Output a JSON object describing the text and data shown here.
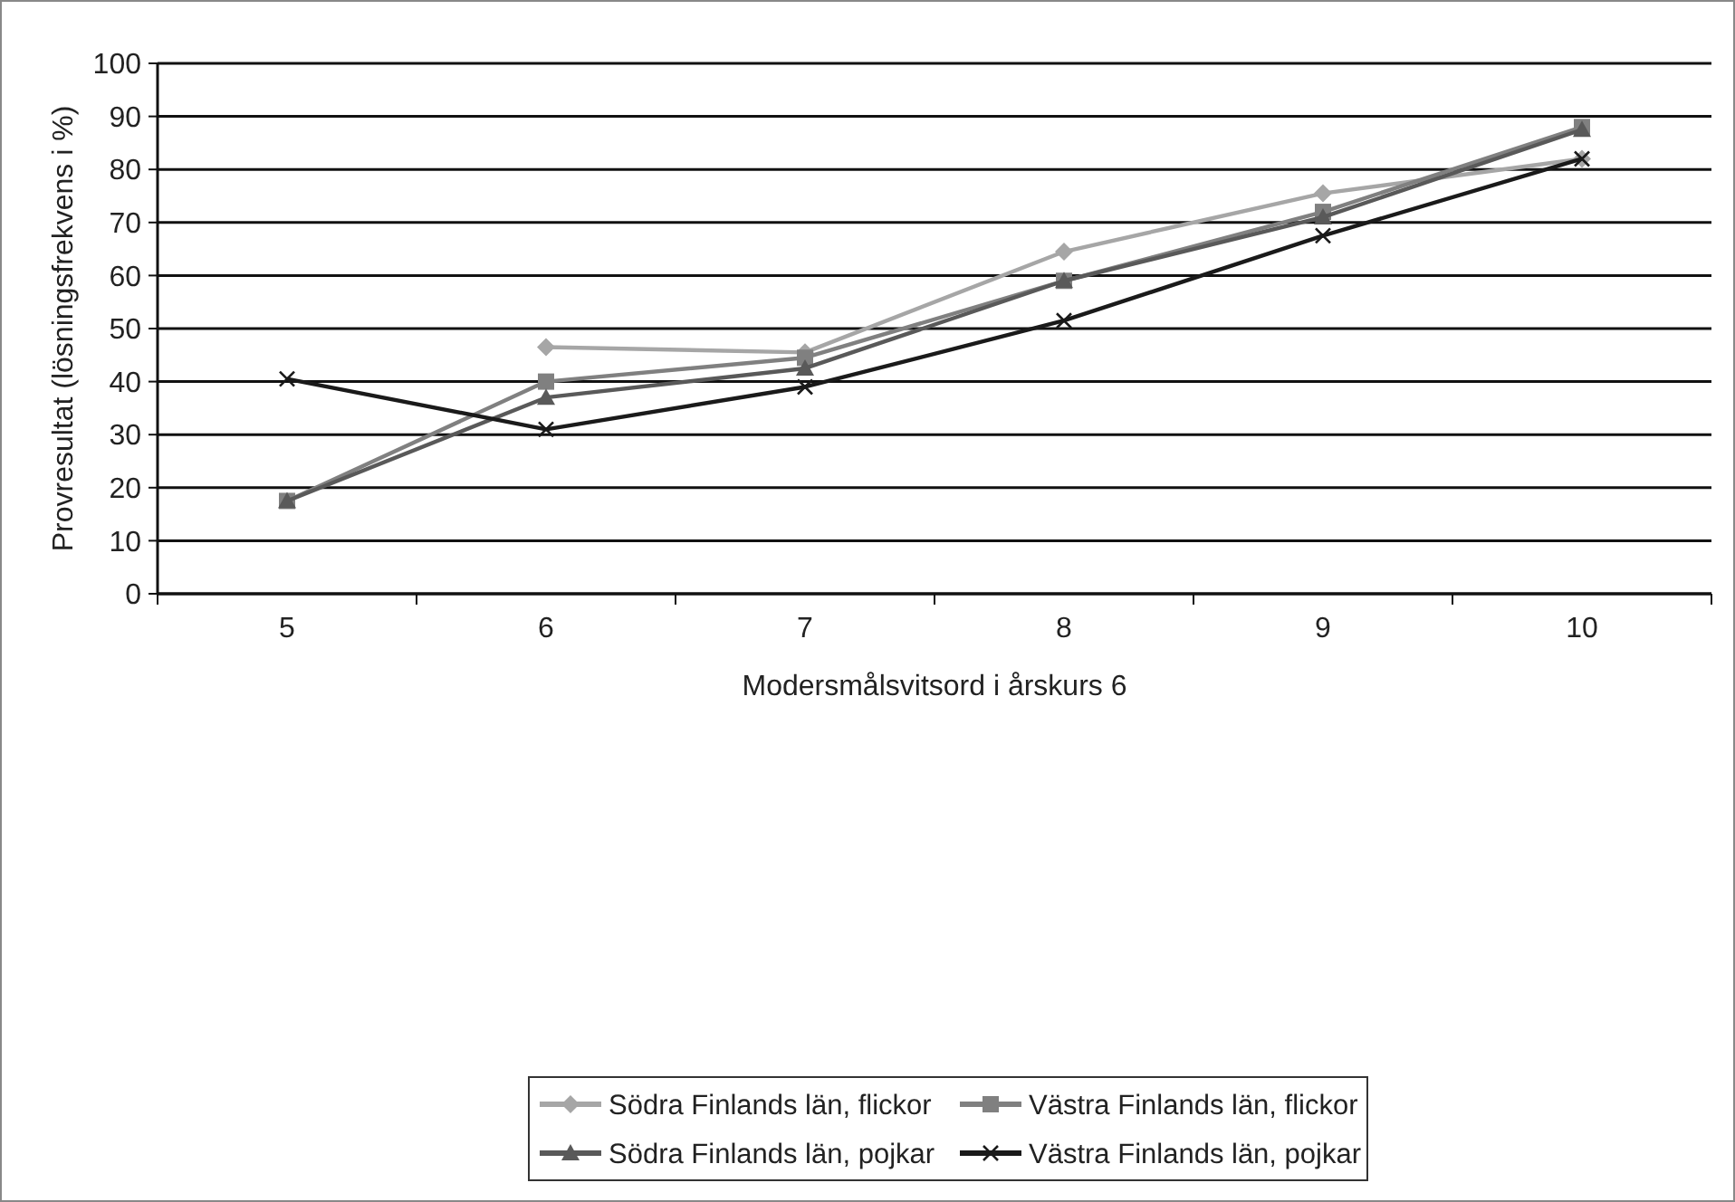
{
  "chart_data": {
    "type": "line",
    "xlabel": "Modersmålsvitsord i årskurs 6",
    "ylabel": "Provresultat (lösningsfrekvens i %)",
    "categories": [
      "5",
      "6",
      "7",
      "8",
      "9",
      "10"
    ],
    "series": [
      {
        "name": "Södra Finlands län, flickor",
        "color": "#a6a6a6",
        "marker": "diamond",
        "values": [
          null,
          46.5,
          45.5,
          64.5,
          75.5,
          82
        ]
      },
      {
        "name": "Västra Finlands län, flickor",
        "color": "#808080",
        "marker": "square",
        "values": [
          17.5,
          40,
          44.5,
          59,
          72,
          88
        ]
      },
      {
        "name": "Södra Finlands län, pojkar",
        "color": "#595959",
        "marker": "triangle",
        "values": [
          17.5,
          37,
          42.5,
          59,
          71,
          87.5
        ]
      },
      {
        "name": "Västra Finlands län, pojkar",
        "color": "#1a1a1a",
        "marker": "cross",
        "values": [
          40.5,
          31,
          39,
          51.5,
          67.5,
          82
        ]
      }
    ],
    "ylim": [
      0,
      100
    ],
    "yticks": [
      0,
      10,
      20,
      30,
      40,
      50,
      60,
      70,
      80,
      90,
      100
    ],
    "grid": "y",
    "legend": "bottom",
    "line_style": "solid"
  }
}
